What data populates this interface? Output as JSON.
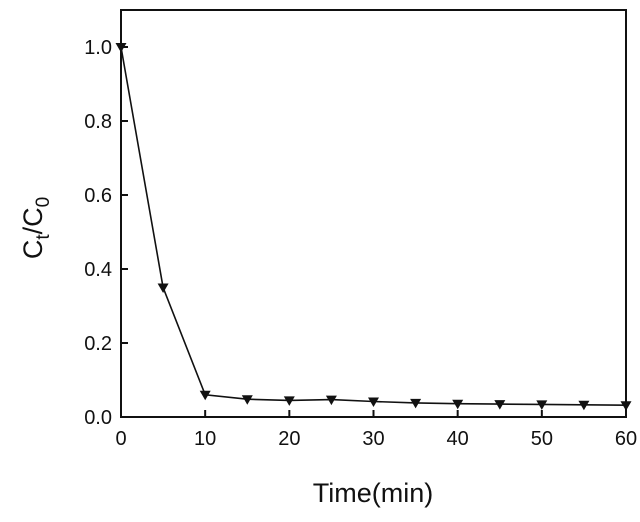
{
  "chart_data": {
    "type": "line",
    "xlabel": "Time(min)",
    "ylabel": {
      "main": "C",
      "sub1": "t",
      "sep": "/C",
      "sub2": "0"
    },
    "xlim": [
      0,
      60
    ],
    "ylim": [
      0.0,
      1.1
    ],
    "xticks": [
      0,
      10,
      20,
      30,
      40,
      50,
      60
    ],
    "xtick_labels": [
      "0",
      "10",
      "20",
      "30",
      "40",
      "50",
      "60"
    ],
    "yticks": [
      0.0,
      0.2,
      0.4,
      0.6,
      0.8,
      1.0
    ],
    "ytick_labels": [
      "0.0",
      "0.2",
      "0.4",
      "0.6",
      "0.8",
      "1.0"
    ],
    "grid": false,
    "marker": "down-triangle",
    "colors": {
      "line": "#111111",
      "axis": "#111111"
    },
    "series": [
      {
        "x": [
          0,
          5,
          10,
          15,
          20,
          25,
          30,
          35,
          40,
          45,
          50,
          55,
          60
        ],
        "y": [
          1.0,
          0.35,
          0.06,
          0.048,
          0.045,
          0.047,
          0.042,
          0.038,
          0.036,
          0.035,
          0.034,
          0.033,
          0.032
        ]
      }
    ]
  }
}
